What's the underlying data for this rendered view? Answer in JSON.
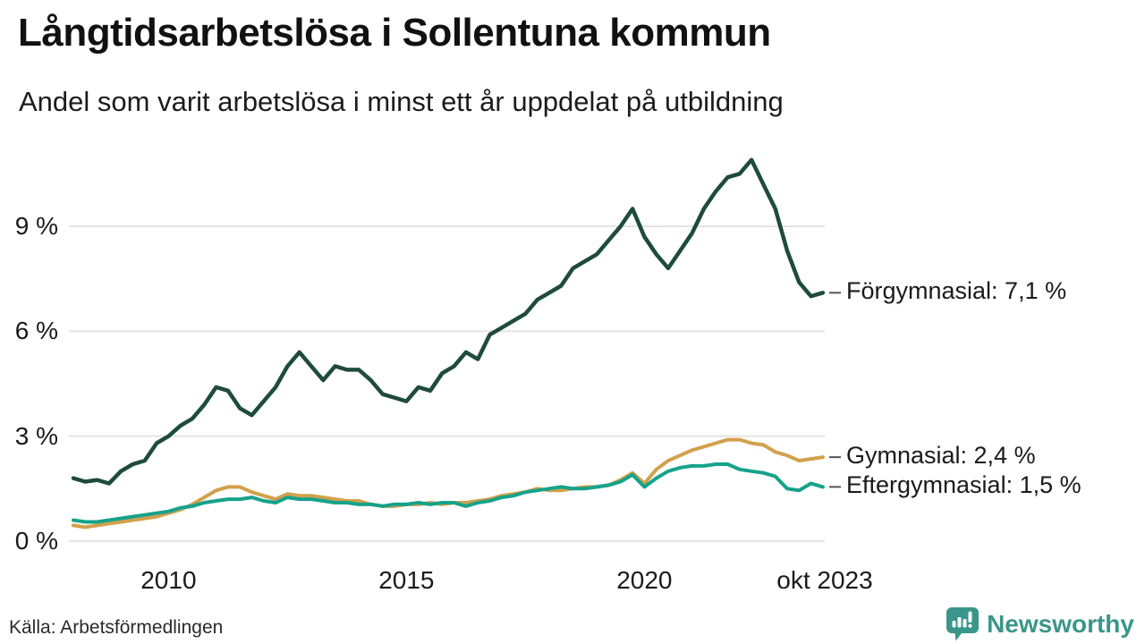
{
  "title": "Långtidsarbetslösa i Sollentuna kommun",
  "subtitle": "Andel som varit arbetslösa i minst ett år uppdelat på utbildning",
  "source": "Källa: Arbetsförmedlingen",
  "brand": {
    "name": "Newsworthy",
    "color": "#3a968a",
    "icon": "newsworthy-pin-barchart-icon"
  },
  "chart_data": {
    "type": "line",
    "title": "Långtidsarbetslösa i Sollentuna kommun",
    "subtitle": "Andel som varit arbetslösa i minst ett år uppdelat på utbildning",
    "xlabel": "",
    "ylabel": "",
    "grid": "horizontal-only",
    "grid_color": "#e4e4e4",
    "end_tick_color": "#555555",
    "xlim": [
      2008.0,
      2023.79
    ],
    "ylim": [
      0,
      11.2
    ],
    "x_ticks": [
      {
        "label": "2010",
        "year": 2010.0
      },
      {
        "label": "2015",
        "year": 2015.0
      },
      {
        "label": "2020",
        "year": 2020.0
      },
      {
        "label": "okt 2023",
        "year": 2023.79
      }
    ],
    "y_ticks": [
      {
        "label": "0 %",
        "value": 0
      },
      {
        "label": "3 %",
        "value": 3
      },
      {
        "label": "6 %",
        "value": 6
      },
      {
        "label": "9 %",
        "value": 9
      }
    ],
    "x": [
      2008.0,
      2008.25,
      2008.5,
      2008.75,
      2009.0,
      2009.25,
      2009.5,
      2009.75,
      2010.0,
      2010.25,
      2010.5,
      2010.75,
      2011.0,
      2011.25,
      2011.5,
      2011.75,
      2012.0,
      2012.25,
      2012.5,
      2012.75,
      2013.0,
      2013.25,
      2013.5,
      2013.75,
      2014.0,
      2014.25,
      2014.5,
      2014.75,
      2015.0,
      2015.25,
      2015.5,
      2015.75,
      2016.0,
      2016.25,
      2016.5,
      2016.75,
      2017.0,
      2017.25,
      2017.5,
      2017.75,
      2018.0,
      2018.25,
      2018.5,
      2018.75,
      2019.0,
      2019.25,
      2019.5,
      2019.75,
      2020.0,
      2020.25,
      2020.5,
      2020.75,
      2021.0,
      2021.25,
      2021.5,
      2021.75,
      2022.0,
      2022.25,
      2022.5,
      2022.75,
      2023.0,
      2023.25,
      2023.5,
      2023.75
    ],
    "series": [
      {
        "name": "Förgymnasial",
        "end_label": "Förgymnasial: 7,1 %",
        "end_value_text": "7,1 %",
        "color": "#1e4b3d",
        "stroke_width": 4.5,
        "values": [
          1.8,
          1.7,
          1.75,
          1.65,
          2.0,
          2.2,
          2.3,
          2.8,
          3.0,
          3.3,
          3.5,
          3.9,
          4.4,
          4.3,
          3.8,
          3.6,
          4.0,
          4.4,
          5.0,
          5.4,
          5.0,
          4.6,
          5.0,
          4.9,
          4.9,
          4.6,
          4.2,
          4.1,
          4.0,
          4.4,
          4.3,
          4.8,
          5.0,
          5.4,
          5.2,
          5.9,
          6.1,
          6.3,
          6.5,
          6.9,
          7.1,
          7.3,
          7.8,
          8.0,
          8.2,
          8.6,
          9.0,
          9.5,
          8.7,
          8.2,
          7.8,
          8.3,
          8.8,
          9.5,
          10.0,
          10.4,
          10.5,
          10.9,
          10.2,
          9.5,
          8.3,
          7.4,
          7.0,
          7.1
        ]
      },
      {
        "name": "Gymnasial",
        "end_label": "Gymnasial: 2,4 %",
        "end_value_text": "2,4 %",
        "color": "#d3a04c",
        "stroke_width": 4,
        "values": [
          0.45,
          0.4,
          0.45,
          0.5,
          0.55,
          0.6,
          0.65,
          0.7,
          0.8,
          0.9,
          1.05,
          1.25,
          1.45,
          1.55,
          1.55,
          1.4,
          1.3,
          1.2,
          1.35,
          1.3,
          1.3,
          1.25,
          1.2,
          1.15,
          1.15,
          1.05,
          1.0,
          1.0,
          1.05,
          1.05,
          1.1,
          1.05,
          1.1,
          1.1,
          1.15,
          1.2,
          1.3,
          1.35,
          1.4,
          1.5,
          1.45,
          1.45,
          1.5,
          1.55,
          1.55,
          1.6,
          1.75,
          1.95,
          1.65,
          2.05,
          2.3,
          2.45,
          2.6,
          2.7,
          2.8,
          2.9,
          2.9,
          2.8,
          2.75,
          2.55,
          2.45,
          2.3,
          2.35,
          2.4
        ]
      },
      {
        "name": "Eftergymnasial",
        "end_label": "Eftergymnasial: 1,5 %",
        "end_value_text": "1,5 %",
        "color": "#16a28b",
        "stroke_width": 4,
        "values": [
          0.6,
          0.55,
          0.55,
          0.6,
          0.65,
          0.7,
          0.75,
          0.8,
          0.85,
          0.95,
          1.0,
          1.1,
          1.15,
          1.2,
          1.2,
          1.25,
          1.15,
          1.1,
          1.25,
          1.2,
          1.2,
          1.15,
          1.1,
          1.1,
          1.05,
          1.05,
          1.0,
          1.05,
          1.05,
          1.1,
          1.05,
          1.1,
          1.1,
          1.0,
          1.1,
          1.15,
          1.25,
          1.3,
          1.4,
          1.45,
          1.5,
          1.55,
          1.5,
          1.5,
          1.55,
          1.6,
          1.7,
          1.9,
          1.55,
          1.8,
          2.0,
          2.1,
          2.15,
          2.15,
          2.2,
          2.2,
          2.05,
          2.0,
          1.95,
          1.85,
          1.5,
          1.45,
          1.65,
          1.55
        ]
      }
    ]
  }
}
